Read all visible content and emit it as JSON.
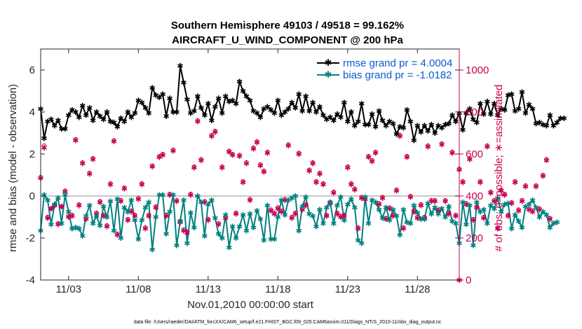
{
  "chart_data": {
    "type": "line",
    "title_line1": "Southern Hemisphere 49103 / 49518 = 99.162%",
    "title_line2": "AIRCRAFT_U_WIND_COMPONENT @ 200 hPa",
    "xlabel": "Nov.01,2010 00:00:00 start",
    "ylabel_left": "rmse and bias (model - observation)",
    "ylabel_right": "# of obs: o=possible; ∗=assimilated",
    "x_ticks": [
      {
        "day": 3,
        "label": "11/03"
      },
      {
        "day": 8,
        "label": "11/08"
      },
      {
        "day": 13,
        "label": "11/13"
      },
      {
        "day": 18,
        "label": "11/18"
      },
      {
        "day": 23,
        "label": "11/23"
      },
      {
        "day": 28,
        "label": "11/28"
      }
    ],
    "xlim": [
      1.0,
      31.0
    ],
    "ylim_left": [
      -4,
      7
    ],
    "yticks_left": [
      -4,
      -2,
      0,
      2,
      4,
      6
    ],
    "yticks_left_labels": [
      "-4",
      "-2",
      "0",
      "2",
      "4",
      "6"
    ],
    "ylim_right": [
      0,
      1100
    ],
    "yticks_right": [
      0,
      200,
      400,
      600,
      800,
      1000
    ],
    "yticks_right_labels": [
      "0",
      "200",
      "400",
      "600",
      "800",
      "1000"
    ],
    "zero_line": 0,
    "x_start": 1.0,
    "x_step": 0.25,
    "series": [
      {
        "name": "rmse grand pr = 4.0004",
        "axis": "left",
        "color": "#000000",
        "marker": "star",
        "values": [
          4.15,
          2.75,
          3.55,
          3.65,
          3.35,
          3.6,
          3.2,
          3.2,
          3.85,
          4.1,
          4.0,
          3.75,
          4.3,
          3.85,
          4.2,
          3.6,
          4.0,
          3.8,
          3.65,
          4.0,
          3.55,
          3.5,
          3.3,
          3.7,
          3.55,
          4.0,
          3.75,
          3.95,
          4.55,
          4.45,
          4.2,
          3.95,
          5.15,
          4.8,
          4.7,
          4.85,
          3.8,
          4.65,
          4.0,
          4.0,
          6.2,
          5.4,
          4.6,
          3.95,
          4.05,
          4.75,
          4.2,
          3.85,
          4.4,
          3.6,
          4.25,
          4.65,
          3.95,
          4.75,
          4.5,
          4.55,
          4.4,
          5.45,
          5.0,
          4.75,
          4.55,
          4.05,
          3.95,
          3.75,
          4.15,
          4.25,
          4.1,
          3.95,
          4.55,
          3.85,
          4.0,
          4.15,
          4.45,
          4.2,
          4.85,
          4.05,
          4.75,
          4.05,
          4.45,
          4.0,
          4.25,
          3.85,
          3.65,
          3.75,
          3.6,
          3.9,
          3.75,
          4.45,
          3.55,
          4.0,
          3.35,
          3.55,
          4.4,
          3.4,
          3.4,
          3.9,
          3.3,
          4.05,
          3.6,
          3.35,
          3.55,
          3.45,
          2.95,
          3.3,
          3.25,
          4.1,
          3.55,
          2.65,
          3.35,
          3.05,
          3.35,
          3.1,
          3.4,
          3.0,
          3.35,
          3.25,
          3.4,
          3.45,
          3.85,
          3.55,
          3.95,
          3.15,
          3.95,
          4.15,
          3.65,
          3.5,
          4.4,
          3.9,
          4.5,
          3.9,
          4.4,
          3.85,
          4.15,
          4.1,
          4.8,
          4.85,
          4.05,
          4.15,
          4.95,
          3.95,
          4.35,
          4.15,
          3.45,
          3.5,
          3.4,
          3.35,
          3.85,
          3.35,
          3.5,
          3.7,
          3.7
        ]
      },
      {
        "name": "bias grand pr = -1.0182",
        "axis": "left",
        "color": "#008080",
        "marker": "star",
        "values": [
          -1.65,
          0.05,
          -0.2,
          -1.35,
          -0.4,
          -0.1,
          -1.3,
          0.05,
          -0.75,
          -1.55,
          -1.5,
          -1.55,
          -1.9,
          -0.95,
          -0.45,
          -1.3,
          -0.95,
          -1.4,
          -0.5,
          -1.0,
          -0.25,
          -1.65,
          -0.15,
          -2.0,
          -0.55,
          -0.75,
          -0.2,
          -1.15,
          -2.05,
          -1.15,
          -0.55,
          -0.3,
          -2.55,
          -1.0,
          0.05,
          0.05,
          -1.8,
          -0.75,
          0.05,
          -2.35,
          -1.2,
          -0.2,
          -2.25,
          -0.8,
          -1.5,
          0.0,
          -0.3,
          -1.9,
          -0.4,
          -0.2,
          -1.05,
          -1.8,
          -2.0,
          -0.9,
          -2.45,
          -1.45,
          -2.0,
          -1.45,
          -0.9,
          -1.65,
          -0.85,
          -1.5,
          -0.7,
          -1.1,
          -2.1,
          -0.45,
          -2.05,
          -2.05,
          -1.0,
          -0.2,
          -0.9,
          -0.2,
          -0.1,
          0.0,
          -1.65,
          -0.5,
          -0.05,
          -0.85,
          -0.95,
          -1.45,
          -0.65,
          -1.3,
          -0.55,
          -0.3,
          -1.3,
          -0.45,
          -0.05,
          -1.15,
          -0.4,
          -0.15,
          -0.55,
          -2.1,
          -2.25,
          -0.05,
          -1.3,
          -0.2,
          -0.3,
          -0.65,
          -1.05,
          -0.55,
          -1.15,
          -0.65,
          -0.95,
          -1.85,
          -0.65,
          -1.25,
          -1.3,
          -0.45,
          -0.8,
          -1.1,
          -1.1,
          -0.35,
          -0.85,
          -0.55,
          -0.85,
          -0.6,
          -1.0,
          -0.5,
          -1.2,
          -1.3,
          -2.25,
          -0.3,
          -1.35,
          -0.45,
          -2.35,
          -0.3,
          -0.75,
          -0.65,
          -1.3,
          -0.45,
          -0.6,
          -0.1,
          -0.75,
          -0.4,
          -0.35,
          -1.55,
          -0.9,
          -1.2,
          -1.5,
          -0.5,
          -0.4,
          -0.2,
          -0.55,
          -1.0,
          -0.75,
          -0.9,
          -1.5,
          -1.3,
          -1.25
        ]
      },
      {
        "name": "# obs possible",
        "axis": "right",
        "color": "#c8004f",
        "marker": "circle",
        "values": [
          490,
          640,
          300,
          340,
          355,
          270,
          350,
          425,
          305,
          310,
          670,
          360,
          560,
          295,
          510,
          580,
          320,
          375,
          310,
          260,
          460,
          665,
          220,
          380,
          440,
          290,
          330,
          310,
          390,
          460,
          250,
          310,
          545,
          350,
          590,
          600,
          310,
          410,
          620,
          380,
          280,
          240,
          230,
          410,
          540,
          760,
          575,
          375,
          290,
          690,
          710,
          270,
          540,
          300,
          615,
          600,
          320,
          595,
          470,
          560,
          385,
          630,
          660,
          550,
          520,
          610,
          335,
          320,
          345,
          330,
          385,
          645,
          300,
          320,
          605,
          340,
          360,
          525,
          560,
          470,
          510,
          460,
          310,
          370,
          420,
          320,
          305,
          310,
          540,
          460,
          435,
          250,
          395,
          390,
          590,
          570,
          610,
          365,
          395,
          295,
          345,
          310,
          430,
          690,
          250,
          590,
          400,
          330,
          300,
          360,
          300,
          640,
          380,
          380,
          335,
          650,
          380,
          320,
          610,
          310,
          530,
          470,
          365,
          580,
          290,
          350,
          470,
          300,
          640,
          420,
          380,
          250,
          430,
          410,
          310,
          370,
          470,
          335,
          380,
          450,
          340,
          330,
          450,
          340,
          500,
          575,
          295
        ]
      },
      {
        "name": "# obs assimilated",
        "axis": "right",
        "color": "#c8004f",
        "marker": "star",
        "values": [
          485,
          630,
          295,
          340,
          355,
          265,
          350,
          420,
          300,
          305,
          665,
          355,
          555,
          290,
          505,
          575,
          315,
          370,
          305,
          255,
          455,
          660,
          215,
          375,
          435,
          285,
          325,
          305,
          385,
          455,
          245,
          305,
          540,
          345,
          585,
          595,
          305,
          405,
          615,
          375,
          275,
          235,
          225,
          405,
          535,
          755,
          570,
          370,
          285,
          685,
          705,
          265,
          535,
          295,
          610,
          595,
          315,
          590,
          465,
          555,
          380,
          625,
          655,
          545,
          515,
          605,
          330,
          315,
          340,
          325,
          380,
          640,
          295,
          315,
          600,
          335,
          355,
          520,
          555,
          465,
          505,
          455,
          305,
          365,
          415,
          315,
          300,
          305,
          535,
          455,
          430,
          245,
          390,
          385,
          585,
          565,
          605,
          360,
          390,
          290,
          340,
          305,
          425,
          685,
          245,
          585,
          395,
          325,
          295,
          355,
          295,
          635,
          375,
          375,
          330,
          645,
          375,
          315,
          605,
          305,
          525,
          465,
          360,
          575,
          285,
          345,
          465,
          295,
          635,
          415,
          375,
          245,
          425,
          405,
          305,
          365,
          465,
          330,
          375,
          445,
          335,
          325,
          445,
          335,
          495,
          570,
          290
        ]
      }
    ],
    "extra_points": [
      {
        "series": "# obs assimilated",
        "x": 31.0,
        "value": 0
      }
    ]
  },
  "legend": {
    "rmse_label": "rmse grand pr = 4.0004",
    "bias_label": "bias grand pr = -1.0182"
  },
  "footer": "data file: /Users/raeder/DAI/ATM_forcXX/CAM6_setup/f.e21.FHIST_BGC.f09_025.CAM6assim.011/Diags_NTrS_2010-11/obs_diag_output.nc"
}
